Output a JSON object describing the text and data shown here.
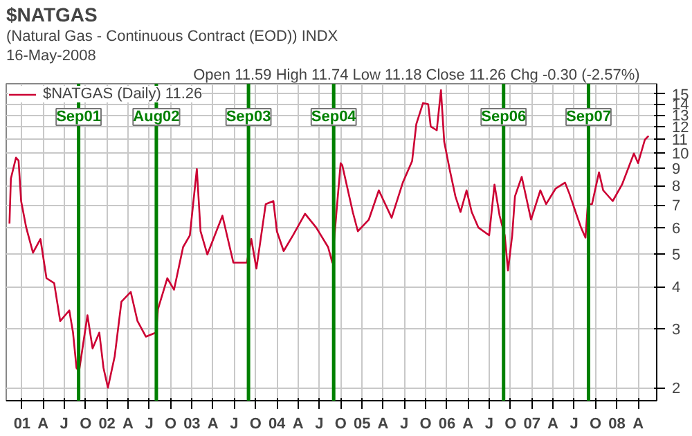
{
  "chart_data": {
    "type": "line",
    "title": "$NATGAS",
    "subtitle": "(Natural Gas - Continuous Contract (EOD)) INDX",
    "annotations": [
      "16-May-2008",
      "Open 11.59  High 11.74  Low 11.18  Close 11.26  Chg -0.30 (-2.57%)"
    ],
    "x": [
      "2000-11-08",
      "2000-11-14",
      "2000-12-06",
      "2000-12-17",
      "2000-12-28",
      "2001-01-19",
      "2001-02-17",
      "2001-03-21",
      "2001-04-16",
      "2001-05-19",
      "2001-06-14",
      "2001-07-23",
      "2001-08-08",
      "2001-08-23",
      "2001-09-03",
      "2001-10-09",
      "2001-10-31",
      "2001-11-29",
      "2001-12-17",
      "2002-01-05",
      "2002-02-03",
      "2002-03-04",
      "2002-04-13",
      "2002-05-12",
      "2002-06-17",
      "2002-07-31",
      "2002-08-08",
      "2002-09-17",
      "2002-10-16",
      "2002-11-24",
      "2002-12-23",
      "2003-01-22",
      "2003-02-07",
      "2003-03-08",
      "2003-05-12",
      "2003-06-28",
      "2003-08-25",
      "2003-09-13",
      "2003-10-05",
      "2003-11-14",
      "2003-12-17",
      "2004-01-01",
      "2004-01-30",
      "2004-03-10",
      "2004-05-01",
      "2004-06-18",
      "2004-08-08",
      "2004-08-26",
      "2004-09-13",
      "2004-10-01",
      "2004-10-08",
      "2004-11-22",
      "2004-12-14",
      "2005-01-30",
      "2005-03-14",
      "2005-05-08",
      "2005-06-25",
      "2005-08-04",
      "2005-08-22",
      "2005-09-20",
      "2005-10-12",
      "2005-10-23",
      "2005-11-18",
      "2005-12-06",
      "2005-12-20",
      "2006-01-12",
      "2006-02-06",
      "2006-02-28",
      "2006-03-26",
      "2006-04-17",
      "2006-05-16",
      "2006-07-01",
      "2006-07-24",
      "2006-08-15",
      "2006-09-06",
      "2006-09-20",
      "2006-10-08",
      "2006-10-20",
      "2006-11-18",
      "2006-12-28",
      "2007-02-06",
      "2007-03-03",
      "2007-04-13",
      "2007-05-23",
      "2007-06-10",
      "2007-07-13",
      "2007-07-31",
      "2007-08-19",
      "2007-08-29",
      "2007-09-16",
      "2007-10-16",
      "2007-11-03",
      "2007-12-14",
      "2008-01-23",
      "2008-03-14",
      "2008-04-01",
      "2008-04-30",
      "2008-05-16"
    ],
    "series": [
      {
        "name": "$NATGAS (Daily) 11.26",
        "color": "#cc0033",
        "values": [
          6.17,
          8.4,
          9.7,
          9.5,
          7.2,
          6.0,
          5.05,
          5.55,
          4.24,
          4.1,
          3.16,
          3.4,
          2.92,
          2.29,
          2.24,
          3.29,
          2.62,
          2.92,
          2.29,
          2.0,
          2.48,
          3.61,
          3.86,
          3.16,
          2.84,
          2.92,
          3.43,
          4.24,
          3.92,
          5.25,
          5.69,
          8.97,
          5.85,
          4.99,
          6.51,
          4.72,
          4.72,
          5.55,
          4.53,
          7.05,
          7.2,
          5.85,
          5.11,
          5.69,
          6.6,
          6.0,
          5.25,
          4.72,
          6.68,
          9.34,
          9.2,
          6.68,
          5.85,
          6.34,
          7.75,
          6.42,
          8.17,
          9.47,
          12.2,
          14.1,
          14.0,
          12.0,
          11.7,
          15.4,
          10.8,
          8.97,
          7.44,
          6.68,
          7.75,
          6.68,
          6.0,
          5.69,
          8.06,
          6.51,
          5.69,
          4.47,
          5.69,
          7.44,
          8.5,
          6.34,
          7.75,
          7.05,
          7.85,
          8.17,
          7.6,
          6.51,
          6.0,
          5.6,
          7.05,
          7.05,
          8.77,
          7.75,
          7.2,
          8.06,
          9.98,
          9.34,
          10.96,
          11.26
        ]
      }
    ],
    "xlim": [
      "2000-10-25",
      "2008-06-20"
    ],
    "xticks": [
      {
        "value": "2001-01-01",
        "label": "01"
      },
      {
        "value": "2001-04-01",
        "label": "A"
      },
      {
        "value": "2001-07-01",
        "label": "J"
      },
      {
        "value": "2001-10-01",
        "label": "O"
      },
      {
        "value": "2002-01-01",
        "label": "02"
      },
      {
        "value": "2002-04-01",
        "label": "A"
      },
      {
        "value": "2002-07-01",
        "label": "J"
      },
      {
        "value": "2002-10-01",
        "label": "O"
      },
      {
        "value": "2003-01-01",
        "label": "03"
      },
      {
        "value": "2003-04-01",
        "label": "A"
      },
      {
        "value": "2003-07-01",
        "label": "J"
      },
      {
        "value": "2003-10-01",
        "label": "O"
      },
      {
        "value": "2004-01-01",
        "label": "04"
      },
      {
        "value": "2004-04-01",
        "label": "A"
      },
      {
        "value": "2004-07-01",
        "label": "J"
      },
      {
        "value": "2004-10-01",
        "label": "O"
      },
      {
        "value": "2005-01-01",
        "label": "05"
      },
      {
        "value": "2005-04-01",
        "label": "A"
      },
      {
        "value": "2005-07-01",
        "label": "J"
      },
      {
        "value": "2005-10-01",
        "label": "O"
      },
      {
        "value": "2006-01-01",
        "label": "06"
      },
      {
        "value": "2006-04-01",
        "label": "A"
      },
      {
        "value": "2006-07-01",
        "label": "J"
      },
      {
        "value": "2006-10-01",
        "label": "O"
      },
      {
        "value": "2007-01-01",
        "label": "07"
      },
      {
        "value": "2007-04-01",
        "label": "A"
      },
      {
        "value": "2007-07-01",
        "label": "J"
      },
      {
        "value": "2007-10-01",
        "label": "O"
      },
      {
        "value": "2008-01-01",
        "label": "08"
      },
      {
        "value": "2008-04-01",
        "label": "A"
      }
    ],
    "ylim": [
      1.83,
      16.1
    ],
    "yticks": [
      2,
      3,
      4,
      5,
      6,
      7,
      8,
      9,
      10,
      11,
      12,
      13,
      14,
      15
    ],
    "log": "y",
    "grid": true,
    "legend": "top left",
    "ref_lines": [
      {
        "axis": "x",
        "value": "2001-09-01",
        "label": "Sep01",
        "color": "#008000"
      },
      {
        "axis": "x",
        "value": "2002-08-01",
        "label": "Aug02",
        "color": "#008000"
      },
      {
        "axis": "x",
        "value": "2003-09-01",
        "label": "Sep03",
        "color": "#008000"
      },
      {
        "axis": "x",
        "value": "2004-09-01",
        "label": "Sep04",
        "color": "#008000"
      },
      {
        "axis": "x",
        "value": "2006-09-01",
        "label": "Sep06",
        "color": "#008000"
      },
      {
        "axis": "x",
        "value": "2007-09-01",
        "label": "Sep07",
        "color": "#008000"
      }
    ]
  }
}
